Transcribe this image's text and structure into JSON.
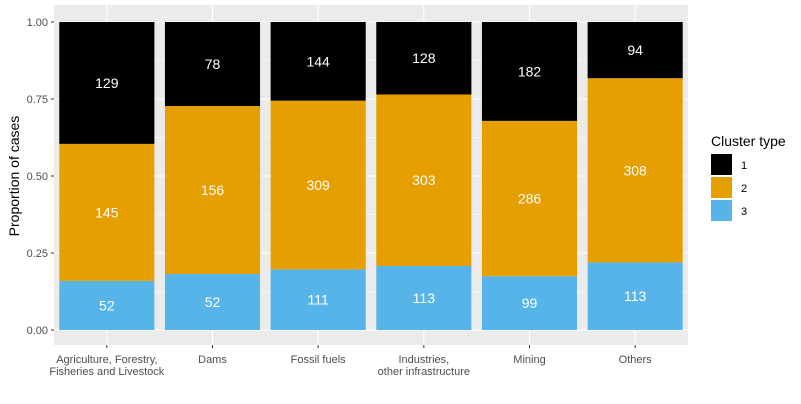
{
  "chart_data": {
    "type": "bar",
    "stacked": true,
    "normalized": true,
    "ylabel": "Proportion of cases",
    "xlabel": "",
    "ylim": [
      0,
      1
    ],
    "yticks": [
      "0.00",
      "0.25",
      "0.50",
      "0.75",
      "1.00"
    ],
    "categories": [
      [
        "Agriculture, Forestry,",
        "Fisheries and Livestock"
      ],
      [
        "Dams"
      ],
      [
        "Fossil fuels"
      ],
      [
        "Industries,",
        "other infrastructure"
      ],
      [
        "Mining"
      ],
      [
        "Others"
      ]
    ],
    "legend": {
      "title": "Cluster type",
      "position": "right"
    },
    "series": [
      {
        "name": "1",
        "color": "#000000",
        "values": [
          129,
          78,
          144,
          128,
          182,
          94
        ]
      },
      {
        "name": "2",
        "color": "#E69F00",
        "values": [
          145,
          156,
          309,
          303,
          286,
          308
        ]
      },
      {
        "name": "3",
        "color": "#56B4E9",
        "values": [
          52,
          52,
          111,
          113,
          99,
          113
        ]
      }
    ],
    "panel_background": "#EBEBEB",
    "grid": true
  }
}
